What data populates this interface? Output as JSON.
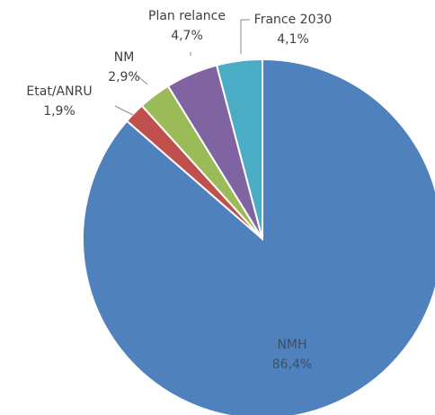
{
  "chart_data": {
    "type": "pie",
    "title": "",
    "start": "12 o'clock, clockwise",
    "slices": [
      {
        "name": "NMH",
        "value": 86.4,
        "label": "86,4%",
        "color": "#4f81bd"
      },
      {
        "name": "Etat/ANRU",
        "value": 1.9,
        "label": "1,9%",
        "color": "#c0504d"
      },
      {
        "name": "NM",
        "value": 2.9,
        "label": "2,9%",
        "color": "#9bbb59"
      },
      {
        "name": "Plan relance",
        "value": 4.7,
        "label": "4,7%",
        "color": "#8064a2"
      },
      {
        "name": "France 2030",
        "value": 4.1,
        "label": "4,1%",
        "color": "#4bacc6"
      }
    ]
  }
}
